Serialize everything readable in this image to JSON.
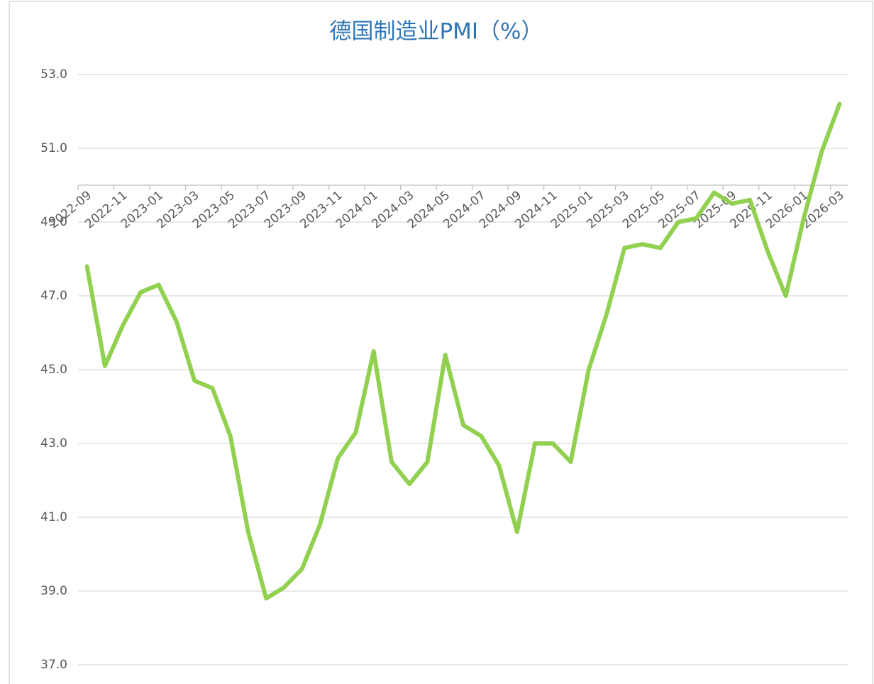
{
  "chart_data": {
    "type": "line",
    "title": "德国制造业PMI（%）",
    "categories": [
      "2022-09",
      null,
      "2022-11",
      null,
      "2023-01",
      null,
      "2023-03",
      null,
      "2023-05",
      null,
      "2023-07",
      null,
      "2023-09",
      null,
      "2023-11",
      null,
      "2024-01",
      null,
      "2024-03",
      null,
      "2024-05",
      null,
      "2024-07",
      null,
      "2024-09",
      null,
      "2024-11",
      null,
      "2025-01",
      null,
      "2025-03",
      null,
      "2025-05",
      null,
      "2025-07",
      null,
      "2025-09",
      null,
      "2025-11",
      null,
      "2026-01",
      null,
      "2026-03"
    ],
    "values": [
      47.8,
      45.1,
      46.2,
      47.1,
      47.3,
      46.3,
      44.7,
      44.5,
      43.2,
      40.6,
      38.8,
      39.1,
      39.6,
      40.8,
      42.6,
      43.3,
      45.5,
      42.5,
      41.9,
      42.5,
      45.4,
      43.5,
      43.2,
      42.4,
      40.6,
      43.0,
      43.0,
      42.5,
      45.0,
      46.5,
      48.3,
      48.4,
      48.3,
      49.0,
      49.1,
      49.8,
      49.5,
      49.6,
      48.2,
      47.0,
      49.1,
      50.9,
      52.2
    ],
    "color": "#92d050",
    "ylim": [
      37,
      53
    ],
    "yticks": [
      {
        "value": 37,
        "label": "37.0"
      },
      {
        "value": 39,
        "label": "39.0"
      },
      {
        "value": 41,
        "label": "41.0"
      },
      {
        "value": 43,
        "label": "43.0"
      },
      {
        "value": 45,
        "label": "45.0"
      },
      {
        "value": 47,
        "label": "47.0"
      },
      {
        "value": 49,
        "label": "49.0"
      },
      {
        "value": 51,
        "label": "51.0"
      },
      {
        "value": 53,
        "label": "53.0"
      }
    ],
    "xaxis_at": 50,
    "grid": true
  }
}
